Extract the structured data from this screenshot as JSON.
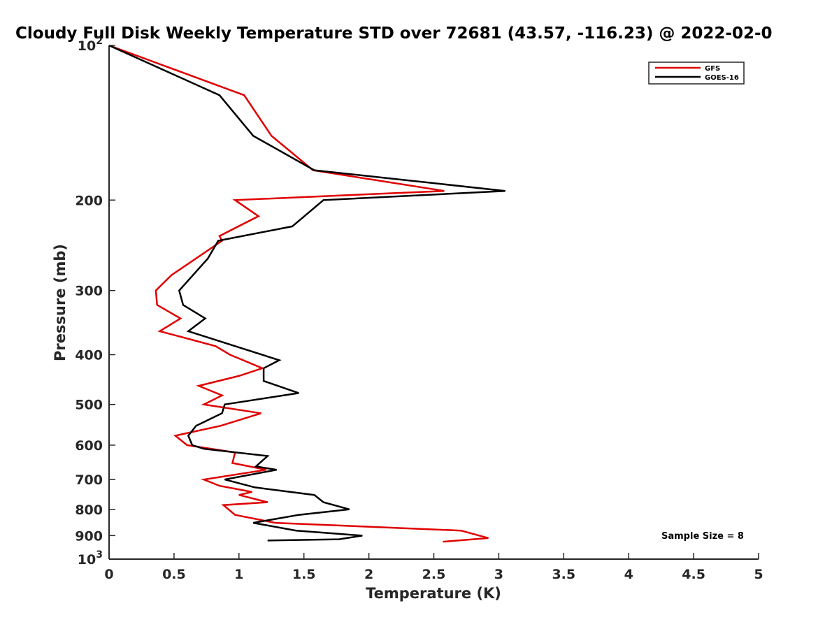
{
  "chart_data": {
    "type": "line",
    "title": "Cloudy Full Disk Weekly Temperature STD over 72681 (43.57, -116.23) @ 2022-02-0",
    "xlabel": "Temperature (K)",
    "ylabel": "Pressure (mb)",
    "xlim": [
      0,
      5
    ],
    "ylim": [
      100,
      1000
    ],
    "y_scale": "log",
    "y_reversed": true,
    "x_ticks": [
      "0",
      "0.5",
      "1",
      "1.5",
      "2",
      "2.5",
      "3",
      "3.5",
      "4",
      "4.5",
      "5"
    ],
    "y_ticks": [
      {
        "value": 100,
        "base": "10",
        "exp": "2"
      },
      {
        "value": 200,
        "label": "200"
      },
      {
        "value": 300,
        "label": "300"
      },
      {
        "value": 400,
        "label": "400"
      },
      {
        "value": 500,
        "label": "500"
      },
      {
        "value": 600,
        "label": "600"
      },
      {
        "value": 700,
        "label": "700"
      },
      {
        "value": 800,
        "label": "800"
      },
      {
        "value": 900,
        "label": "900"
      },
      {
        "value": 1000,
        "base": "10",
        "exp": "3"
      }
    ],
    "grid": false,
    "legend_position": "top-right",
    "annotation": "Sample Size = 8",
    "series": [
      {
        "name": "GFS",
        "color": "#e00000",
        "points": [
          [
            0.0,
            100
          ],
          [
            1.04,
            125
          ],
          [
            1.25,
            150
          ],
          [
            1.57,
            175
          ],
          [
            2.58,
            192
          ],
          [
            0.97,
            200
          ],
          [
            1.15,
            215
          ],
          [
            0.85,
            235
          ],
          [
            0.87,
            240
          ],
          [
            0.48,
            280
          ],
          [
            0.36,
            300
          ],
          [
            0.37,
            320
          ],
          [
            0.55,
            340
          ],
          [
            0.39,
            360
          ],
          [
            0.82,
            385
          ],
          [
            0.93,
            400
          ],
          [
            1.18,
            425
          ],
          [
            1.0,
            440
          ],
          [
            0.69,
            460
          ],
          [
            0.87,
            480
          ],
          [
            0.73,
            500
          ],
          [
            1.17,
            520
          ],
          [
            0.86,
            550
          ],
          [
            0.51,
            575
          ],
          [
            0.6,
            600
          ],
          [
            0.97,
            620
          ],
          [
            0.95,
            650
          ],
          [
            1.21,
            670
          ],
          [
            0.73,
            700
          ],
          [
            0.85,
            720
          ],
          [
            1.1,
            740
          ],
          [
            1.0,
            750
          ],
          [
            1.22,
            775
          ],
          [
            0.88,
            785
          ],
          [
            0.97,
            820
          ],
          [
            1.28,
            850
          ],
          [
            2.71,
            880
          ],
          [
            2.92,
            910
          ],
          [
            2.57,
            925
          ]
        ]
      },
      {
        "name": "GOES-16",
        "color": "#000000",
        "points": [
          [
            0.0,
            100
          ],
          [
            0.85,
            125
          ],
          [
            1.11,
            150
          ],
          [
            1.58,
            175
          ],
          [
            3.05,
            192
          ],
          [
            1.65,
            200
          ],
          [
            1.41,
            225
          ],
          [
            0.84,
            240
          ],
          [
            0.76,
            260
          ],
          [
            0.54,
            300
          ],
          [
            0.57,
            320
          ],
          [
            0.74,
            340
          ],
          [
            0.61,
            360
          ],
          [
            1.31,
            410
          ],
          [
            1.19,
            425
          ],
          [
            1.19,
            450
          ],
          [
            1.46,
            475
          ],
          [
            0.89,
            500
          ],
          [
            0.87,
            520
          ],
          [
            0.67,
            550
          ],
          [
            0.61,
            575
          ],
          [
            0.64,
            600
          ],
          [
            0.73,
            610
          ],
          [
            1.22,
            630
          ],
          [
            1.13,
            660
          ],
          [
            1.29,
            670
          ],
          [
            0.89,
            700
          ],
          [
            1.12,
            725
          ],
          [
            1.58,
            750
          ],
          [
            1.65,
            775
          ],
          [
            1.85,
            800
          ],
          [
            1.46,
            820
          ],
          [
            1.11,
            850
          ],
          [
            1.44,
            880
          ],
          [
            1.95,
            900
          ],
          [
            1.77,
            915
          ],
          [
            1.22,
            920
          ]
        ]
      }
    ]
  }
}
